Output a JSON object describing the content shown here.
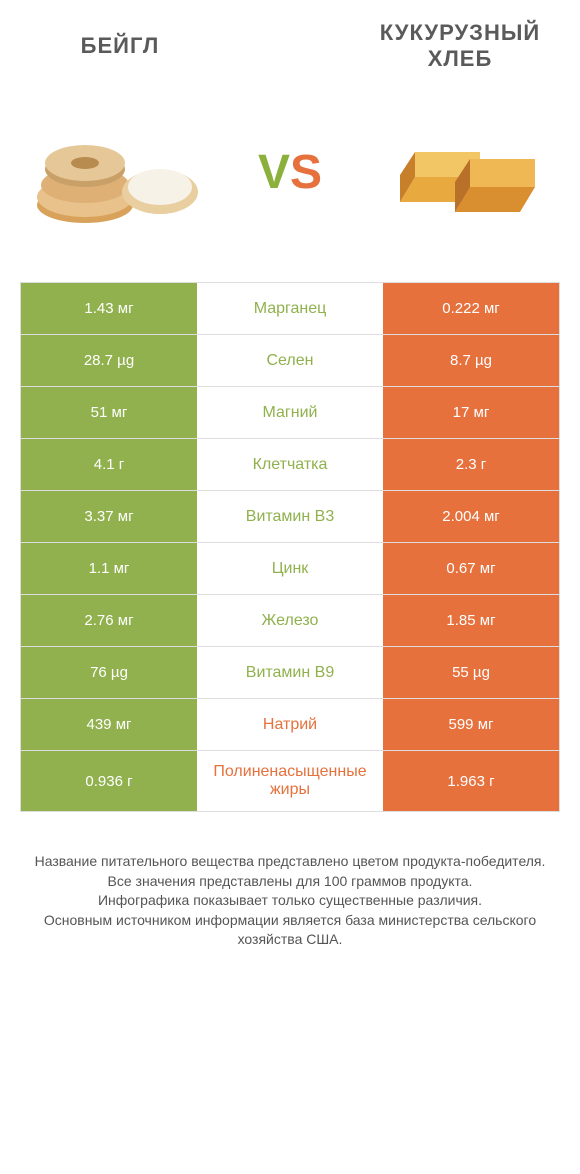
{
  "leftTitle": "БЕЙГЛ",
  "rightTitle": "КУКУРУЗНЫЙ ХЛЕБ",
  "vsV": "V",
  "vsS": "S",
  "colors": {
    "green": "#90b14d",
    "orange": "#e6713d",
    "midGreen": "#90b14d",
    "midOrange": "#e6713d",
    "textMid": "#555",
    "rowBorder": "#ddd"
  },
  "rows": [
    {
      "left": "1.43 мг",
      "mid": "Марганец",
      "right": "0.222 мг",
      "winner": "left"
    },
    {
      "left": "28.7 µg",
      "mid": "Селен",
      "right": "8.7 µg",
      "winner": "left"
    },
    {
      "left": "51 мг",
      "mid": "Магний",
      "right": "17 мг",
      "winner": "left"
    },
    {
      "left": "4.1 г",
      "mid": "Клетчатка",
      "right": "2.3 г",
      "winner": "left"
    },
    {
      "left": "3.37 мг",
      "mid": "Витамин B3",
      "right": "2.004 мг",
      "winner": "left"
    },
    {
      "left": "1.1 мг",
      "mid": "Цинк",
      "right": "0.67 мг",
      "winner": "left"
    },
    {
      "left": "2.76 мг",
      "mid": "Железо",
      "right": "1.85 мг",
      "winner": "left"
    },
    {
      "left": "76 µg",
      "mid": "Витамин B9",
      "right": "55 µg",
      "winner": "left"
    },
    {
      "left": "439 мг",
      "mid": "Натрий",
      "right": "599 мг",
      "winner": "right"
    },
    {
      "left": "0.936 г",
      "mid": "Полиненасыщенные жиры",
      "right": "1.963 г",
      "winner": "right"
    }
  ],
  "footerLines": [
    "Название питательного вещества представлено цветом продукта-победителя.",
    "Все значения представлены для 100 граммов продукта.",
    "Инфографика показывает только существенные различия.",
    "Основным источником информации является база министерства сельского хозяйства США."
  ]
}
